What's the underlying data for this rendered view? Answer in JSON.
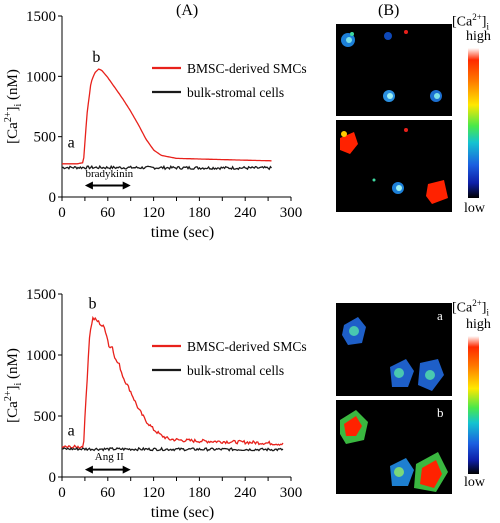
{
  "figure": {
    "label_A": "(A)",
    "label_B": "(B)"
  },
  "colors": {
    "bmsc": "#e8211b",
    "bulk": "#1a1a1a",
    "image_bg": "#000000"
  },
  "chart_data": [
    {
      "type": "line",
      "title": "",
      "xlabel": "time (sec)",
      "ylabel_html": "[Ca<sup>2+</sup>]<sub>i</sub> (nM)",
      "ylabel": "[Ca2+]i (nM)",
      "xlim": [
        0,
        300
      ],
      "ylim": [
        0,
        1500
      ],
      "xticks": [
        0,
        30,
        60,
        90,
        120,
        150,
        180,
        210,
        240,
        270,
        300
      ],
      "xtick_labels": [
        "0",
        "",
        "60",
        "",
        "120",
        "",
        "180",
        "",
        "240",
        "",
        "300"
      ],
      "yticks": [
        0,
        500,
        1000,
        1500
      ],
      "grid": false,
      "legend": "top-right",
      "series": [
        {
          "name": "BMSC-derived SMCs",
          "color": "#e8211b",
          "x": [
            0,
            10,
            20,
            28,
            33,
            38,
            43,
            48,
            52,
            60,
            70,
            80,
            90,
            100,
            110,
            120,
            130,
            150,
            180,
            210,
            240,
            275
          ],
          "y": [
            275,
            275,
            275,
            285,
            700,
            950,
            1030,
            1060,
            1050,
            990,
            900,
            810,
            710,
            600,
            480,
            390,
            345,
            320,
            315,
            310,
            305,
            300
          ]
        },
        {
          "name": "bulk-stromal cells",
          "color": "#1a1a1a",
          "x": [
            0,
            275
          ],
          "y": [
            245,
            240
          ],
          "noise": 12
        }
      ],
      "annotations": [
        {
          "text": "a",
          "x": 12,
          "y": 410
        },
        {
          "text": "b",
          "x": 45,
          "y": 1120
        },
        {
          "text": "bradykinin",
          "x": 62,
          "y": 165
        },
        {
          "arrow_from": 30,
          "arrow_to": 90,
          "y": 95
        }
      ]
    },
    {
      "type": "line",
      "title": "",
      "xlabel": "time (sec)",
      "ylabel_html": "[Ca<sup>2+</sup>]<sub>i</sub> (nM)",
      "ylabel": "[Ca2+]i (nM)",
      "xlim": [
        0,
        300
      ],
      "ylim": [
        0,
        1500
      ],
      "xticks": [
        0,
        30,
        60,
        90,
        120,
        150,
        180,
        210,
        240,
        270,
        300
      ],
      "xtick_labels": [
        "0",
        "",
        "60",
        "",
        "120",
        "",
        "180",
        "",
        "240",
        "",
        "300"
      ],
      "yticks": [
        0,
        500,
        1000,
        1500
      ],
      "grid": false,
      "legend": "top-right",
      "series": [
        {
          "name": "BMSC-derived SMCs",
          "color": "#e8211b",
          "x": [
            0,
            10,
            20,
            28,
            32,
            36,
            40,
            44,
            48,
            52,
            55,
            58,
            62,
            66,
            70,
            75,
            80,
            90,
            100,
            110,
            120,
            130,
            140,
            160,
            180,
            210,
            240,
            270,
            290
          ],
          "y": [
            245,
            245,
            245,
            250,
            700,
            1150,
            1300,
            1290,
            1270,
            1240,
            1230,
            1180,
            1060,
            1070,
            960,
            920,
            820,
            700,
            560,
            460,
            390,
            340,
            310,
            300,
            295,
            290,
            285,
            278,
            270
          ],
          "noise": 14
        },
        {
          "name": "bulk-stromal cells",
          "color": "#1a1a1a",
          "x": [
            0,
            290
          ],
          "y": [
            230,
            225
          ],
          "noise": 11
        }
      ],
      "annotations": [
        {
          "text": "a",
          "x": 12,
          "y": 340
        },
        {
          "text": "b",
          "x": 40,
          "y": 1380
        },
        {
          "text": "Ang II",
          "x": 62,
          "y": 140
        },
        {
          "arrow_from": 30,
          "arrow_to": 90,
          "y": 60
        }
      ]
    }
  ],
  "panel_B": {
    "colorbar_title_html": "[Ca<sup>2+</sup>]<sub>i</sub>",
    "colorbar_title": "[Ca2+]i",
    "high_label": "high",
    "low_label": "low",
    "image_letters": [
      "a",
      "b"
    ]
  }
}
